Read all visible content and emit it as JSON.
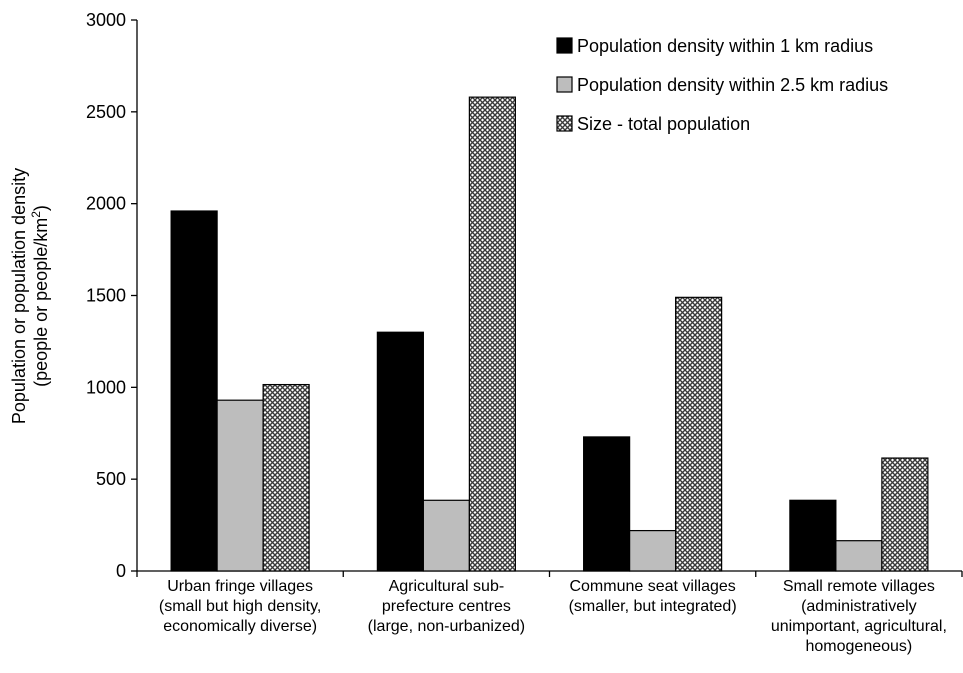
{
  "chart_data": {
    "type": "bar",
    "ylabel_line1": "Population or population density",
    "ylabel_line2_prefix": "(people or people/km",
    "ylabel_line2_sup": "2",
    "ylabel_line2_suffix": ")",
    "ylim": [
      0,
      3000
    ],
    "yticks": [
      0,
      500,
      1000,
      1500,
      2000,
      2500,
      3000
    ],
    "grid": false,
    "legend_position": "top-right",
    "categories": [
      [
        "Urban fringe villages",
        "(small but high density,",
        "economically diverse)"
      ],
      [
        "Agricultural sub-",
        "prefecture centres",
        "(large, non-urbanized)"
      ],
      [
        "Commune seat villages",
        "(smaller, but integrated)"
      ],
      [
        "Small remote villages",
        "(administratively",
        "unimportant, agricultural,",
        "homogeneous)"
      ]
    ],
    "series": [
      {
        "name": "Population density within 1 km radius",
        "fill": "black",
        "values": [
          1960,
          1300,
          730,
          385
        ]
      },
      {
        "name": "Population density within 2.5 km radius",
        "fill": "gray",
        "values": [
          930,
          385,
          220,
          165
        ]
      },
      {
        "name": "Size - total population",
        "fill": "hatch",
        "values": [
          1015,
          2580,
          1490,
          615
        ]
      }
    ],
    "colors": {
      "black": "#000000",
      "gray": "#bdbdbd",
      "hatch_bg": "#ffffff",
      "hatch_fg": "#3a3a3a"
    }
  }
}
